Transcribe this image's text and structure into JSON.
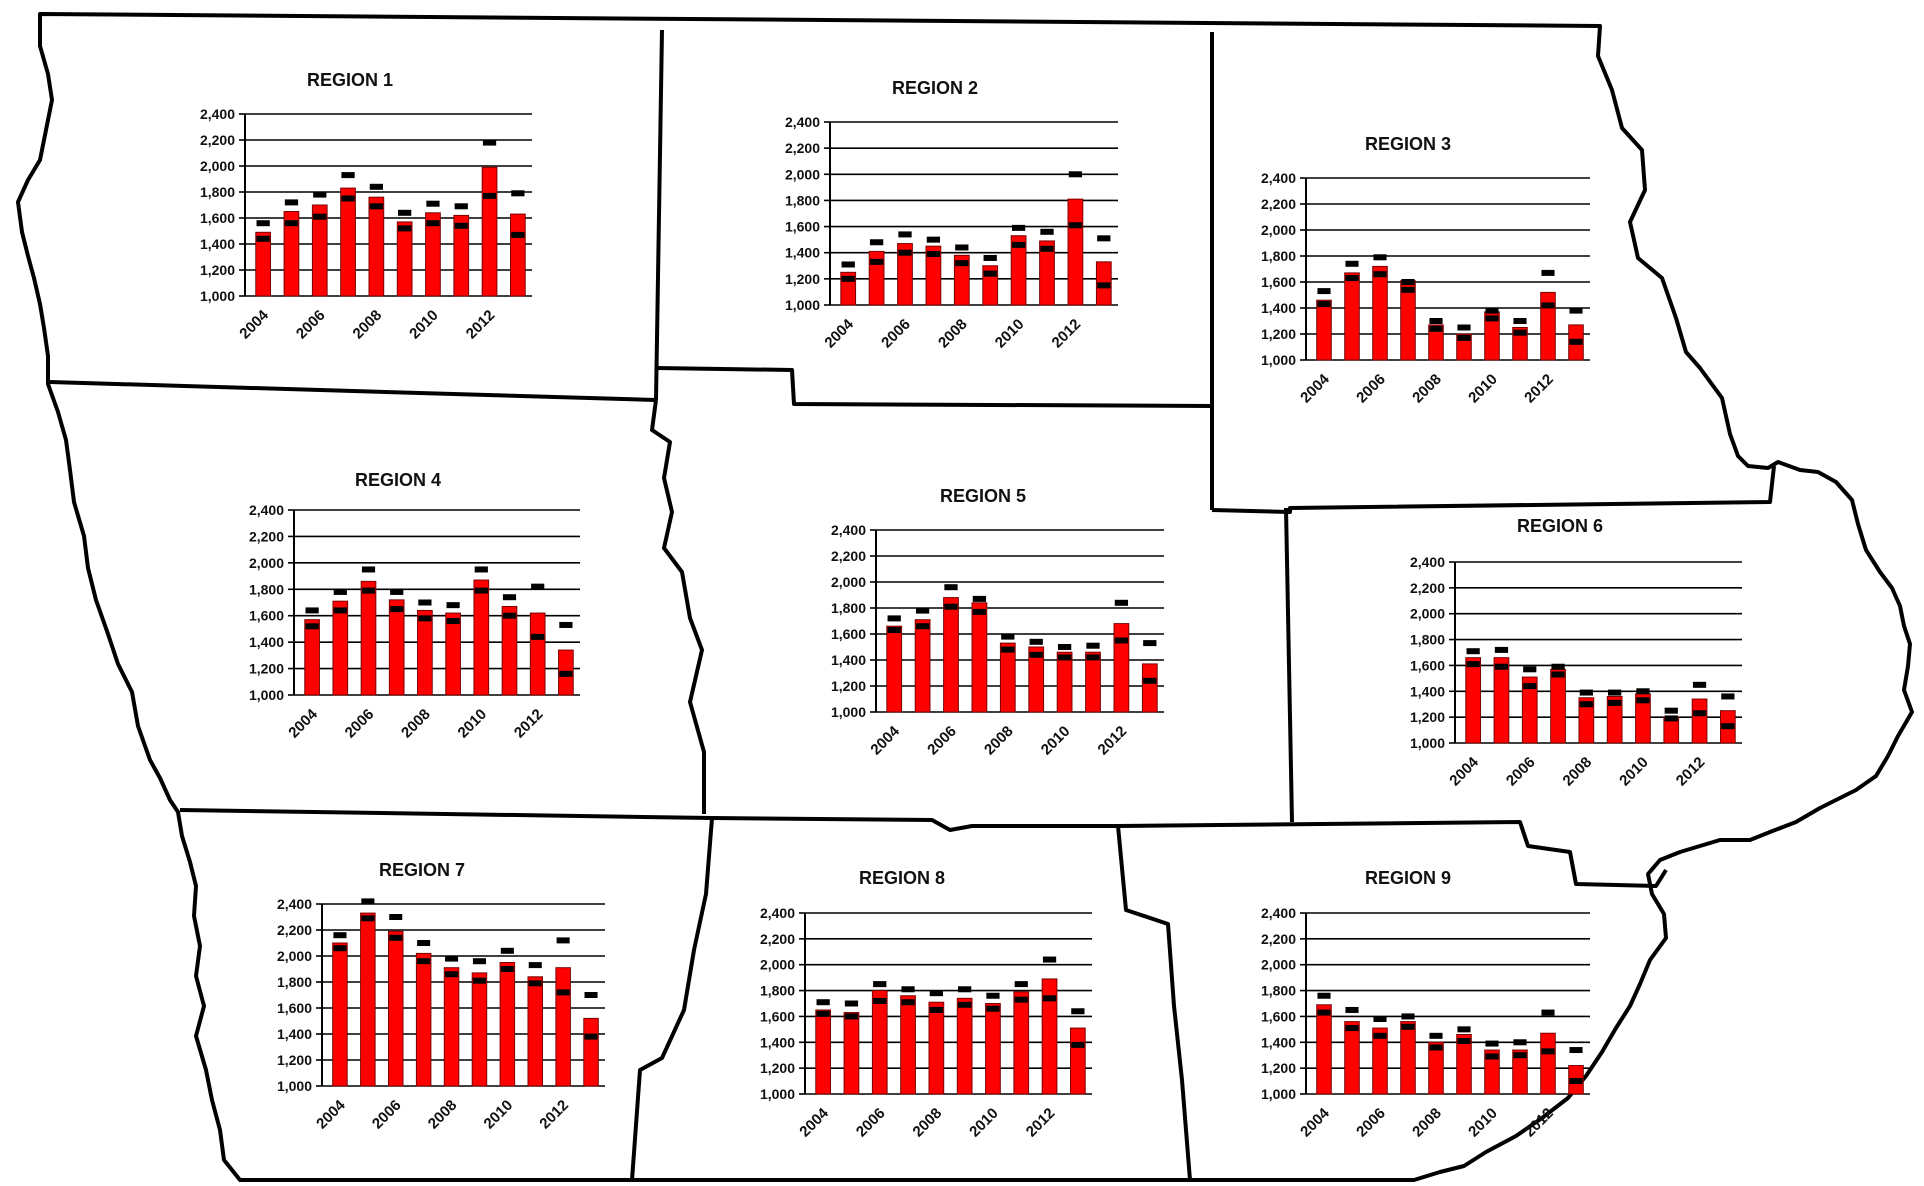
{
  "chart_data": [
    {
      "type": "bar",
      "title": "REGION 1",
      "ylim": [
        1000,
        2400
      ],
      "yticks": [
        "1,000",
        "1,200",
        "1,400",
        "1,600",
        "1,800",
        "2,000",
        "2,200",
        "2,400"
      ],
      "xticks": [
        "2004",
        "2006",
        "2008",
        "2010",
        "2012"
      ],
      "categories": [
        "2004",
        "2005",
        "2006",
        "2007",
        "2008",
        "2009",
        "2010",
        "2011",
        "2012",
        "2013"
      ],
      "values": [
        1490,
        1650,
        1700,
        1830,
        1760,
        1570,
        1640,
        1620,
        1990,
        1630
      ],
      "upper": [
        1560,
        1720,
        1780,
        1930,
        1840,
        1640,
        1710,
        1690,
        2180,
        1790
      ],
      "lower": [
        1440,
        1560,
        1610,
        1750,
        1690,
        1520,
        1560,
        1540,
        1770,
        1470
      ]
    },
    {
      "type": "bar",
      "title": "REGION 2",
      "ylim": [
        1000,
        2400
      ],
      "yticks": [
        "1,000",
        "1,200",
        "1,400",
        "1,600",
        "1,800",
        "2,000",
        "2,200",
        "2,400"
      ],
      "xticks": [
        "2004",
        "2006",
        "2008",
        "2010",
        "2012"
      ],
      "categories": [
        "2004",
        "2005",
        "2006",
        "2007",
        "2008",
        "2009",
        "2010",
        "2011",
        "2012",
        "2013"
      ],
      "values": [
        1250,
        1410,
        1470,
        1450,
        1380,
        1300,
        1530,
        1490,
        1810,
        1330
      ],
      "upper": [
        1310,
        1480,
        1540,
        1500,
        1440,
        1360,
        1590,
        1560,
        2000,
        1510
      ],
      "lower": [
        1200,
        1330,
        1400,
        1390,
        1320,
        1240,
        1460,
        1430,
        1610,
        1150
      ]
    },
    {
      "type": "bar",
      "title": "REGION 3",
      "ylim": [
        1000,
        2400
      ],
      "yticks": [
        "1,000",
        "1,200",
        "1,400",
        "1,600",
        "1,800",
        "2,000",
        "2,200",
        "2,400"
      ],
      "xticks": [
        "2004",
        "2006",
        "2008",
        "2010",
        "2012"
      ],
      "categories": [
        "2004",
        "2005",
        "2006",
        "2007",
        "2008",
        "2009",
        "2010",
        "2011",
        "2012",
        "2013"
      ],
      "values": [
        1460,
        1670,
        1720,
        1610,
        1270,
        1200,
        1370,
        1250,
        1520,
        1270
      ],
      "upper": [
        1530,
        1740,
        1790,
        1600,
        1300,
        1250,
        1380,
        1300,
        1670,
        1380
      ],
      "lower": [
        1430,
        1630,
        1660,
        1540,
        1240,
        1170,
        1320,
        1210,
        1420,
        1140
      ]
    },
    {
      "type": "bar",
      "title": "REGION 4",
      "ylim": [
        1000,
        2400
      ],
      "yticks": [
        "1,000",
        "1,200",
        "1,400",
        "1,600",
        "1,800",
        "2,000",
        "2,200",
        "2,400"
      ],
      "xticks": [
        "2004",
        "2006",
        "2008",
        "2010",
        "2012"
      ],
      "categories": [
        "2004",
        "2005",
        "2006",
        "2007",
        "2008",
        "2009",
        "2010",
        "2011",
        "2012",
        "2013"
      ],
      "values": [
        1570,
        1710,
        1860,
        1720,
        1640,
        1620,
        1870,
        1670,
        1620,
        1340
      ],
      "upper": [
        1640,
        1780,
        1950,
        1780,
        1700,
        1680,
        1950,
        1740,
        1820,
        1530
      ],
      "lower": [
        1520,
        1640,
        1790,
        1650,
        1580,
        1560,
        1790,
        1600,
        1440,
        1160
      ]
    },
    {
      "type": "bar",
      "title": "REGION 5",
      "ylim": [
        1000,
        2400
      ],
      "yticks": [
        "1,000",
        "1,200",
        "1,400",
        "1,600",
        "1,800",
        "2,000",
        "2,200",
        "2,400"
      ],
      "xticks": [
        "2004",
        "2006",
        "2008",
        "2010",
        "2012"
      ],
      "categories": [
        "2004",
        "2005",
        "2006",
        "2007",
        "2008",
        "2009",
        "2010",
        "2011",
        "2012",
        "2013"
      ],
      "values": [
        1660,
        1710,
        1880,
        1840,
        1530,
        1500,
        1460,
        1460,
        1680,
        1370
      ],
      "upper": [
        1720,
        1780,
        1960,
        1870,
        1580,
        1540,
        1500,
        1510,
        1840,
        1530
      ],
      "lower": [
        1630,
        1660,
        1810,
        1770,
        1480,
        1440,
        1420,
        1420,
        1550,
        1240
      ]
    },
    {
      "type": "bar",
      "title": "REGION 6",
      "ylim": [
        1000,
        2400
      ],
      "yticks": [
        "1,000",
        "1,200",
        "1,400",
        "1,600",
        "1,800",
        "2,000",
        "2,200",
        "2,400"
      ],
      "xticks": [
        "2004",
        "2006",
        "2008",
        "2010",
        "2012"
      ],
      "categories": [
        "2004",
        "2005",
        "2006",
        "2007",
        "2008",
        "2009",
        "2010",
        "2011",
        "2012",
        "2013"
      ],
      "values": [
        1660,
        1660,
        1510,
        1570,
        1350,
        1360,
        1380,
        1200,
        1340,
        1250
      ],
      "upper": [
        1710,
        1720,
        1570,
        1590,
        1390,
        1390,
        1400,
        1250,
        1450,
        1360
      ],
      "lower": [
        1610,
        1590,
        1440,
        1530,
        1300,
        1310,
        1330,
        1190,
        1230,
        1130
      ]
    },
    {
      "type": "bar",
      "title": "REGION 7",
      "ylim": [
        1000,
        2400
      ],
      "yticks": [
        "1,000",
        "1,200",
        "1,400",
        "1,600",
        "1,800",
        "2,000",
        "2,200",
        "2,400"
      ],
      "xticks": [
        "2004",
        "2006",
        "2008",
        "2010",
        "2012"
      ],
      "categories": [
        "2004",
        "2005",
        "2006",
        "2007",
        "2008",
        "2009",
        "2010",
        "2011",
        "2012",
        "2013"
      ],
      "values": [
        2100,
        2330,
        2190,
        2020,
        1910,
        1870,
        1950,
        1840,
        1910,
        1520
      ],
      "upper": [
        2160,
        2420,
        2300,
        2100,
        1980,
        1960,
        2040,
        1930,
        2120,
        1700
      ],
      "lower": [
        2060,
        2290,
        2140,
        1960,
        1860,
        1810,
        1900,
        1790,
        1720,
        1380
      ]
    },
    {
      "type": "bar",
      "title": "REGION 8",
      "ylim": [
        1000,
        2400
      ],
      "yticks": [
        "1,000",
        "1,200",
        "1,400",
        "1,600",
        "1,800",
        "2,000",
        "2,200",
        "2,400"
      ],
      "xticks": [
        "2004",
        "2006",
        "2008",
        "2010",
        "2012"
      ],
      "categories": [
        "2004",
        "2005",
        "2006",
        "2007",
        "2008",
        "2009",
        "2010",
        "2011",
        "2012",
        "2013"
      ],
      "values": [
        1650,
        1630,
        1800,
        1760,
        1710,
        1740,
        1700,
        1790,
        1890,
        1510
      ],
      "upper": [
        1710,
        1700,
        1850,
        1810,
        1780,
        1810,
        1760,
        1850,
        2040,
        1640
      ],
      "lower": [
        1620,
        1600,
        1720,
        1710,
        1650,
        1690,
        1660,
        1730,
        1740,
        1380
      ]
    },
    {
      "type": "bar",
      "title": "REGION 9",
      "ylim": [
        1000,
        2400
      ],
      "yticks": [
        "1,000",
        "1,200",
        "1,400",
        "1,600",
        "1,800",
        "2,000",
        "2,200",
        "2,400"
      ],
      "xticks": [
        "2004",
        "2006",
        "2008",
        "2010",
        "2012"
      ],
      "categories": [
        "2004",
        "2005",
        "2006",
        "2007",
        "2008",
        "2009",
        "2010",
        "2011",
        "2012",
        "2013"
      ],
      "values": [
        1690,
        1560,
        1510,
        1560,
        1400,
        1460,
        1340,
        1340,
        1470,
        1220
      ],
      "upper": [
        1760,
        1650,
        1580,
        1600,
        1450,
        1500,
        1390,
        1400,
        1630,
        1340
      ],
      "lower": [
        1630,
        1510,
        1450,
        1520,
        1360,
        1410,
        1290,
        1300,
        1330,
        1100
      ]
    }
  ],
  "colors": {
    "bar": "#ff0000",
    "bar_edge": "#7a0000",
    "marker": "#000000",
    "border": "#000000"
  }
}
